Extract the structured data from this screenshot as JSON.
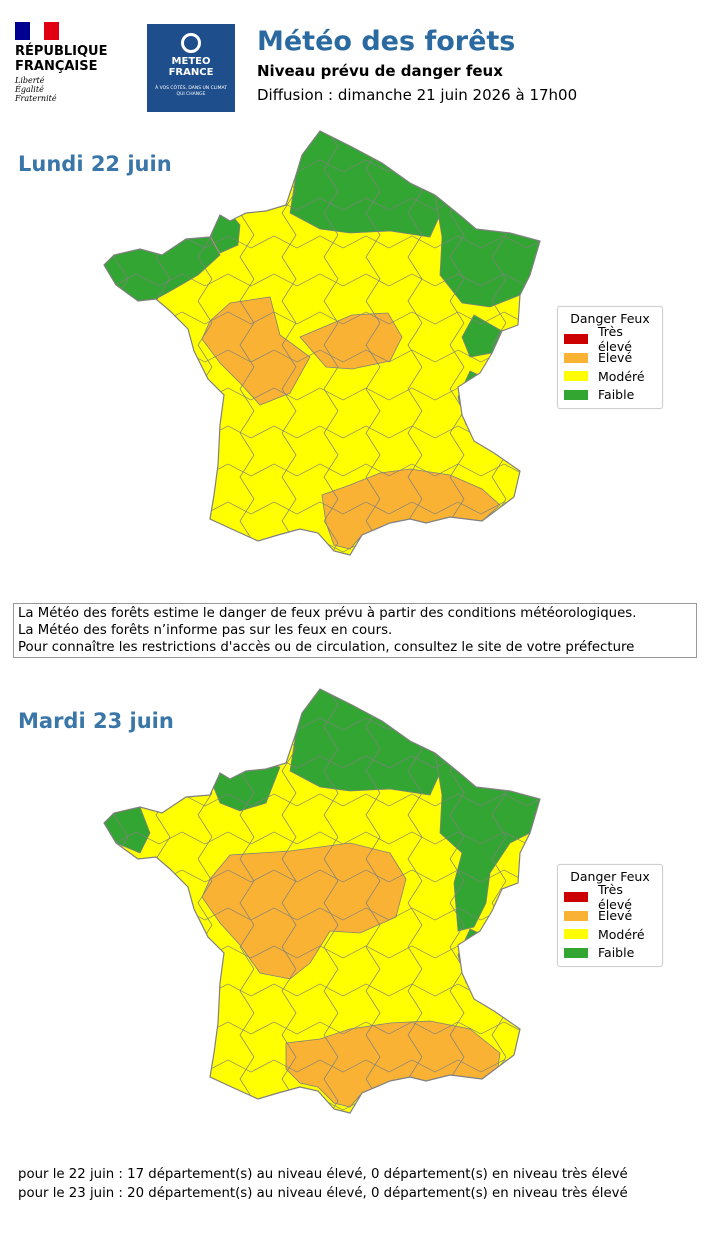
{
  "header": {
    "republique": {
      "line1": "RÉPUBLIQUE",
      "line2": "FRANÇAISE",
      "motto": [
        "Liberté",
        "Égalité",
        "Fraternité"
      ]
    },
    "meteo_france": {
      "name_line1": "METEO",
      "name_line2": "FRANCE",
      "tagline": "À VOS CÔTÉS, DANS UN CLIMAT QUI CHANGE"
    },
    "title": "Météo des forêts",
    "subtitle": "Niveau prévu de danger feux",
    "diffusion": "Diffusion : dimanche 21 juin 2026 à 17h00"
  },
  "colors": {
    "title_blue": "#2a6aa0",
    "flag": [
      "#000091",
      "#ffffff",
      "#e1000f"
    ],
    "tres_eleve": "#cc0000",
    "eleve": "#f9b233",
    "modere": "#ffff00",
    "faible": "#33a532",
    "borders": "#808080"
  },
  "legend": {
    "title": "Danger Feux",
    "items": [
      {
        "label": "Très élevé",
        "color": "#cc0000"
      },
      {
        "label": "Elevé",
        "color": "#f9b233"
      },
      {
        "label": "Modéré",
        "color": "#ffff00"
      },
      {
        "label": "Faible",
        "color": "#33a532"
      }
    ]
  },
  "days": [
    {
      "title": "Lundi 22 juin",
      "departments_eleve": 17,
      "departments_tres_eleve": 0
    },
    {
      "title": "Mardi 23 juin",
      "departments_eleve": 20,
      "departments_tres_eleve": 0
    }
  ],
  "disclaimer": [
    "La Météo des forêts estime le danger de feux prévu à partir des conditions météorologiques.",
    "La Météo des forêts n’informe pas sur les feux en cours.",
    "Pour connaître les restrictions d'accès ou de circulation, consultez le site de votre préfecture"
  ],
  "summary": [
    "pour le 22 juin : 17 département(s) au niveau élevé, 0 département(s) en niveau très élevé",
    "pour le 23 juin : 20 département(s) au niveau élevé, 0 département(s) en niveau très élevé"
  ]
}
